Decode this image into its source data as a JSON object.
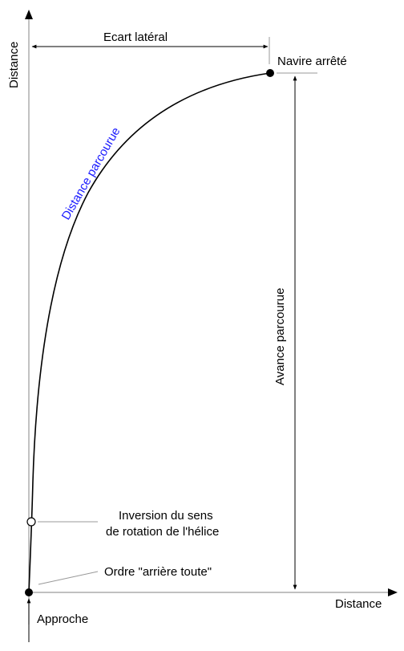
{
  "labels": {
    "y_axis": "Distance",
    "x_axis": "Distance",
    "lateral": "Ecart latéral",
    "stopped": "Navire arrêté",
    "path": "Distance parcourue",
    "advance": "Avance parcourue",
    "inversion_line1": "Inversion du sens",
    "inversion_line2": "de rotation de l'hélice",
    "order": "Ordre \"arrière toute\"",
    "approach": "Approche"
  },
  "colors": {
    "path_label": "#1a1aff",
    "axis": "#9a9a9a",
    "curve": "#000000"
  }
}
